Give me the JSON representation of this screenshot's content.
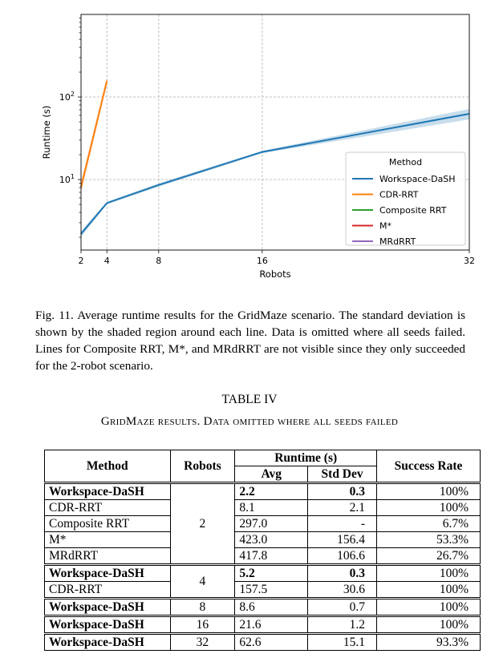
{
  "chart_data": {
    "type": "line",
    "xlabel": "Robots",
    "ylabel": "Runtime (s)",
    "x_ticks": [
      "2",
      "4",
      "8",
      "16",
      "32"
    ],
    "x_tick_values": [
      2,
      4,
      8,
      16,
      32
    ],
    "y_ticks": [
      {
        "base": "10",
        "exp": "1",
        "value": 10
      },
      {
        "base": "10",
        "exp": "2",
        "value": 100
      }
    ],
    "y_scale": "log",
    "ylim": [
      1.4,
      1000
    ],
    "xlim": [
      2,
      32
    ],
    "grid": true,
    "legend_title": "Method",
    "legend_position": "lower-right",
    "series": [
      {
        "name": "Workspace-DaSH",
        "color": "#1f77b4",
        "x": [
          2,
          4,
          8,
          16,
          32
        ],
        "y": [
          2.2,
          5.2,
          8.6,
          21.6,
          62.6
        ],
        "std": [
          0.3,
          0.3,
          0.7,
          1.2,
          15.1
        ]
      },
      {
        "name": "CDR-RRT",
        "color": "#ff7f0e",
        "x": [
          2,
          4
        ],
        "y": [
          8.1,
          157.5
        ],
        "std": [
          2.1,
          30.6
        ]
      },
      {
        "name": "Composite RRT",
        "color": "#2ca02c",
        "x": [
          2
        ],
        "y": [
          297.0
        ],
        "std": [
          0
        ]
      },
      {
        "name": "M*",
        "color": "#d62728",
        "x": [
          2
        ],
        "y": [
          423.0
        ],
        "std": [
          156.4
        ]
      },
      {
        "name": "MRdRRT",
        "color": "#9467bd",
        "x": [
          2
        ],
        "y": [
          417.8
        ],
        "std": [
          106.6
        ]
      }
    ]
  },
  "caption": "Fig. 11.   Average runtime results for the GridMaze scenario. The standard deviation is shown by the shaded region around each line. Data is omitted where all seeds failed. Lines for Composite RRT, M*, and MRdRRT are not visible since they only succeeded for the 2-robot scenario.",
  "table": {
    "title": "TABLE IV",
    "subtitle": "GridMaze results. Data omitted where all seeds failed",
    "headers": {
      "method": "Method",
      "robots": "Robots",
      "runtime": "Runtime (s)",
      "avg": "Avg",
      "std": "Std Dev",
      "success": "Success Rate"
    },
    "groups": [
      {
        "robots": "2",
        "rows": [
          {
            "method": "Workspace-DaSH",
            "avg": "2.2",
            "std": "0.3",
            "success": "100%",
            "bold_method": true,
            "bold_vals": true
          },
          {
            "method": "CDR-RRT",
            "avg": "8.1",
            "std": "2.1",
            "success": "100%"
          },
          {
            "method": "Composite RRT",
            "avg": "297.0",
            "std": "-",
            "success": "6.7%"
          },
          {
            "method": "M*",
            "avg": "423.0",
            "std": "156.4",
            "success": "53.3%"
          },
          {
            "method": "MRdRRT",
            "avg": "417.8",
            "std": "106.6",
            "success": "26.7%"
          }
        ]
      },
      {
        "robots": "4",
        "rows": [
          {
            "method": "Workspace-DaSH",
            "avg": "5.2",
            "std": "0.3",
            "success": "100%",
            "bold_method": true,
            "bold_vals": true
          },
          {
            "method": "CDR-RRT",
            "avg": "157.5",
            "std": "30.6",
            "success": "100%"
          }
        ]
      },
      {
        "robots": "8",
        "rows": [
          {
            "method": "Workspace-DaSH",
            "avg": "8.6",
            "std": "0.7",
            "success": "100%",
            "bold_method": true
          }
        ]
      },
      {
        "robots": "16",
        "rows": [
          {
            "method": "Workspace-DaSH",
            "avg": "21.6",
            "std": "1.2",
            "success": "100%",
            "bold_method": true
          }
        ]
      },
      {
        "robots": "32",
        "rows": [
          {
            "method": "Workspace-DaSH",
            "avg": "62.6",
            "std": "15.1",
            "success": "93.3%",
            "bold_method": true
          }
        ]
      }
    ]
  }
}
